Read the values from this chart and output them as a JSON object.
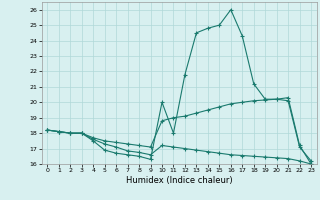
{
  "line1_x": [
    0,
    1,
    2,
    3,
    4,
    5,
    6,
    7,
    8,
    9,
    10,
    11,
    12,
    13,
    14,
    15,
    16,
    17,
    18,
    19,
    20,
    21,
    22,
    23
  ],
  "line1_y": [
    18.2,
    18.1,
    18.0,
    18.0,
    17.5,
    16.9,
    16.7,
    16.6,
    16.5,
    16.3,
    20.0,
    18.0,
    21.8,
    24.5,
    24.8,
    25.0,
    26.0,
    24.3,
    21.2,
    20.2,
    20.2,
    20.3,
    17.2,
    16.0
  ],
  "line2_x": [
    0,
    1,
    2,
    3,
    4,
    5,
    6,
    7,
    8,
    9,
    10,
    11,
    12,
    13,
    14,
    15,
    16,
    17,
    18,
    19,
    20,
    21,
    22,
    23
  ],
  "line2_y": [
    18.2,
    18.1,
    18.0,
    18.0,
    17.7,
    17.5,
    17.4,
    17.3,
    17.2,
    17.1,
    18.8,
    19.0,
    19.1,
    19.3,
    19.5,
    19.7,
    19.9,
    20.0,
    20.1,
    20.15,
    20.2,
    20.1,
    17.1,
    16.2
  ],
  "line3_x": [
    0,
    1,
    2,
    3,
    4,
    5,
    6,
    7,
    8,
    9,
    10,
    11,
    12,
    13,
    14,
    15,
    16,
    17,
    18,
    19,
    20,
    21,
    22,
    23
  ],
  "line3_y": [
    18.2,
    18.1,
    18.0,
    18.0,
    17.6,
    17.3,
    17.1,
    16.85,
    16.75,
    16.6,
    17.2,
    17.1,
    17.0,
    16.9,
    16.8,
    16.7,
    16.6,
    16.55,
    16.5,
    16.45,
    16.4,
    16.35,
    16.2,
    16.0
  ],
  "line_color": "#1a7a6e",
  "bg_color": "#d8f0f0",
  "grid_color": "#b0d8d8",
  "xlabel": "Humidex (Indice chaleur)",
  "ylim": [
    16,
    26.5
  ],
  "xlim": [
    -0.5,
    23.5
  ],
  "yticks": [
    16,
    17,
    18,
    19,
    20,
    21,
    22,
    23,
    24,
    25,
    26
  ],
  "xticks": [
    0,
    1,
    2,
    3,
    4,
    5,
    6,
    7,
    8,
    9,
    10,
    11,
    12,
    13,
    14,
    15,
    16,
    17,
    18,
    19,
    20,
    21,
    22,
    23
  ],
  "xtick_labels": [
    "0",
    "1",
    "2",
    "3",
    "4",
    "5",
    "6",
    "7",
    "8",
    "9",
    "10",
    "11",
    "12",
    "13",
    "14",
    "15",
    "16",
    "17",
    "18",
    "19",
    "20",
    "21",
    "22",
    "23"
  ]
}
